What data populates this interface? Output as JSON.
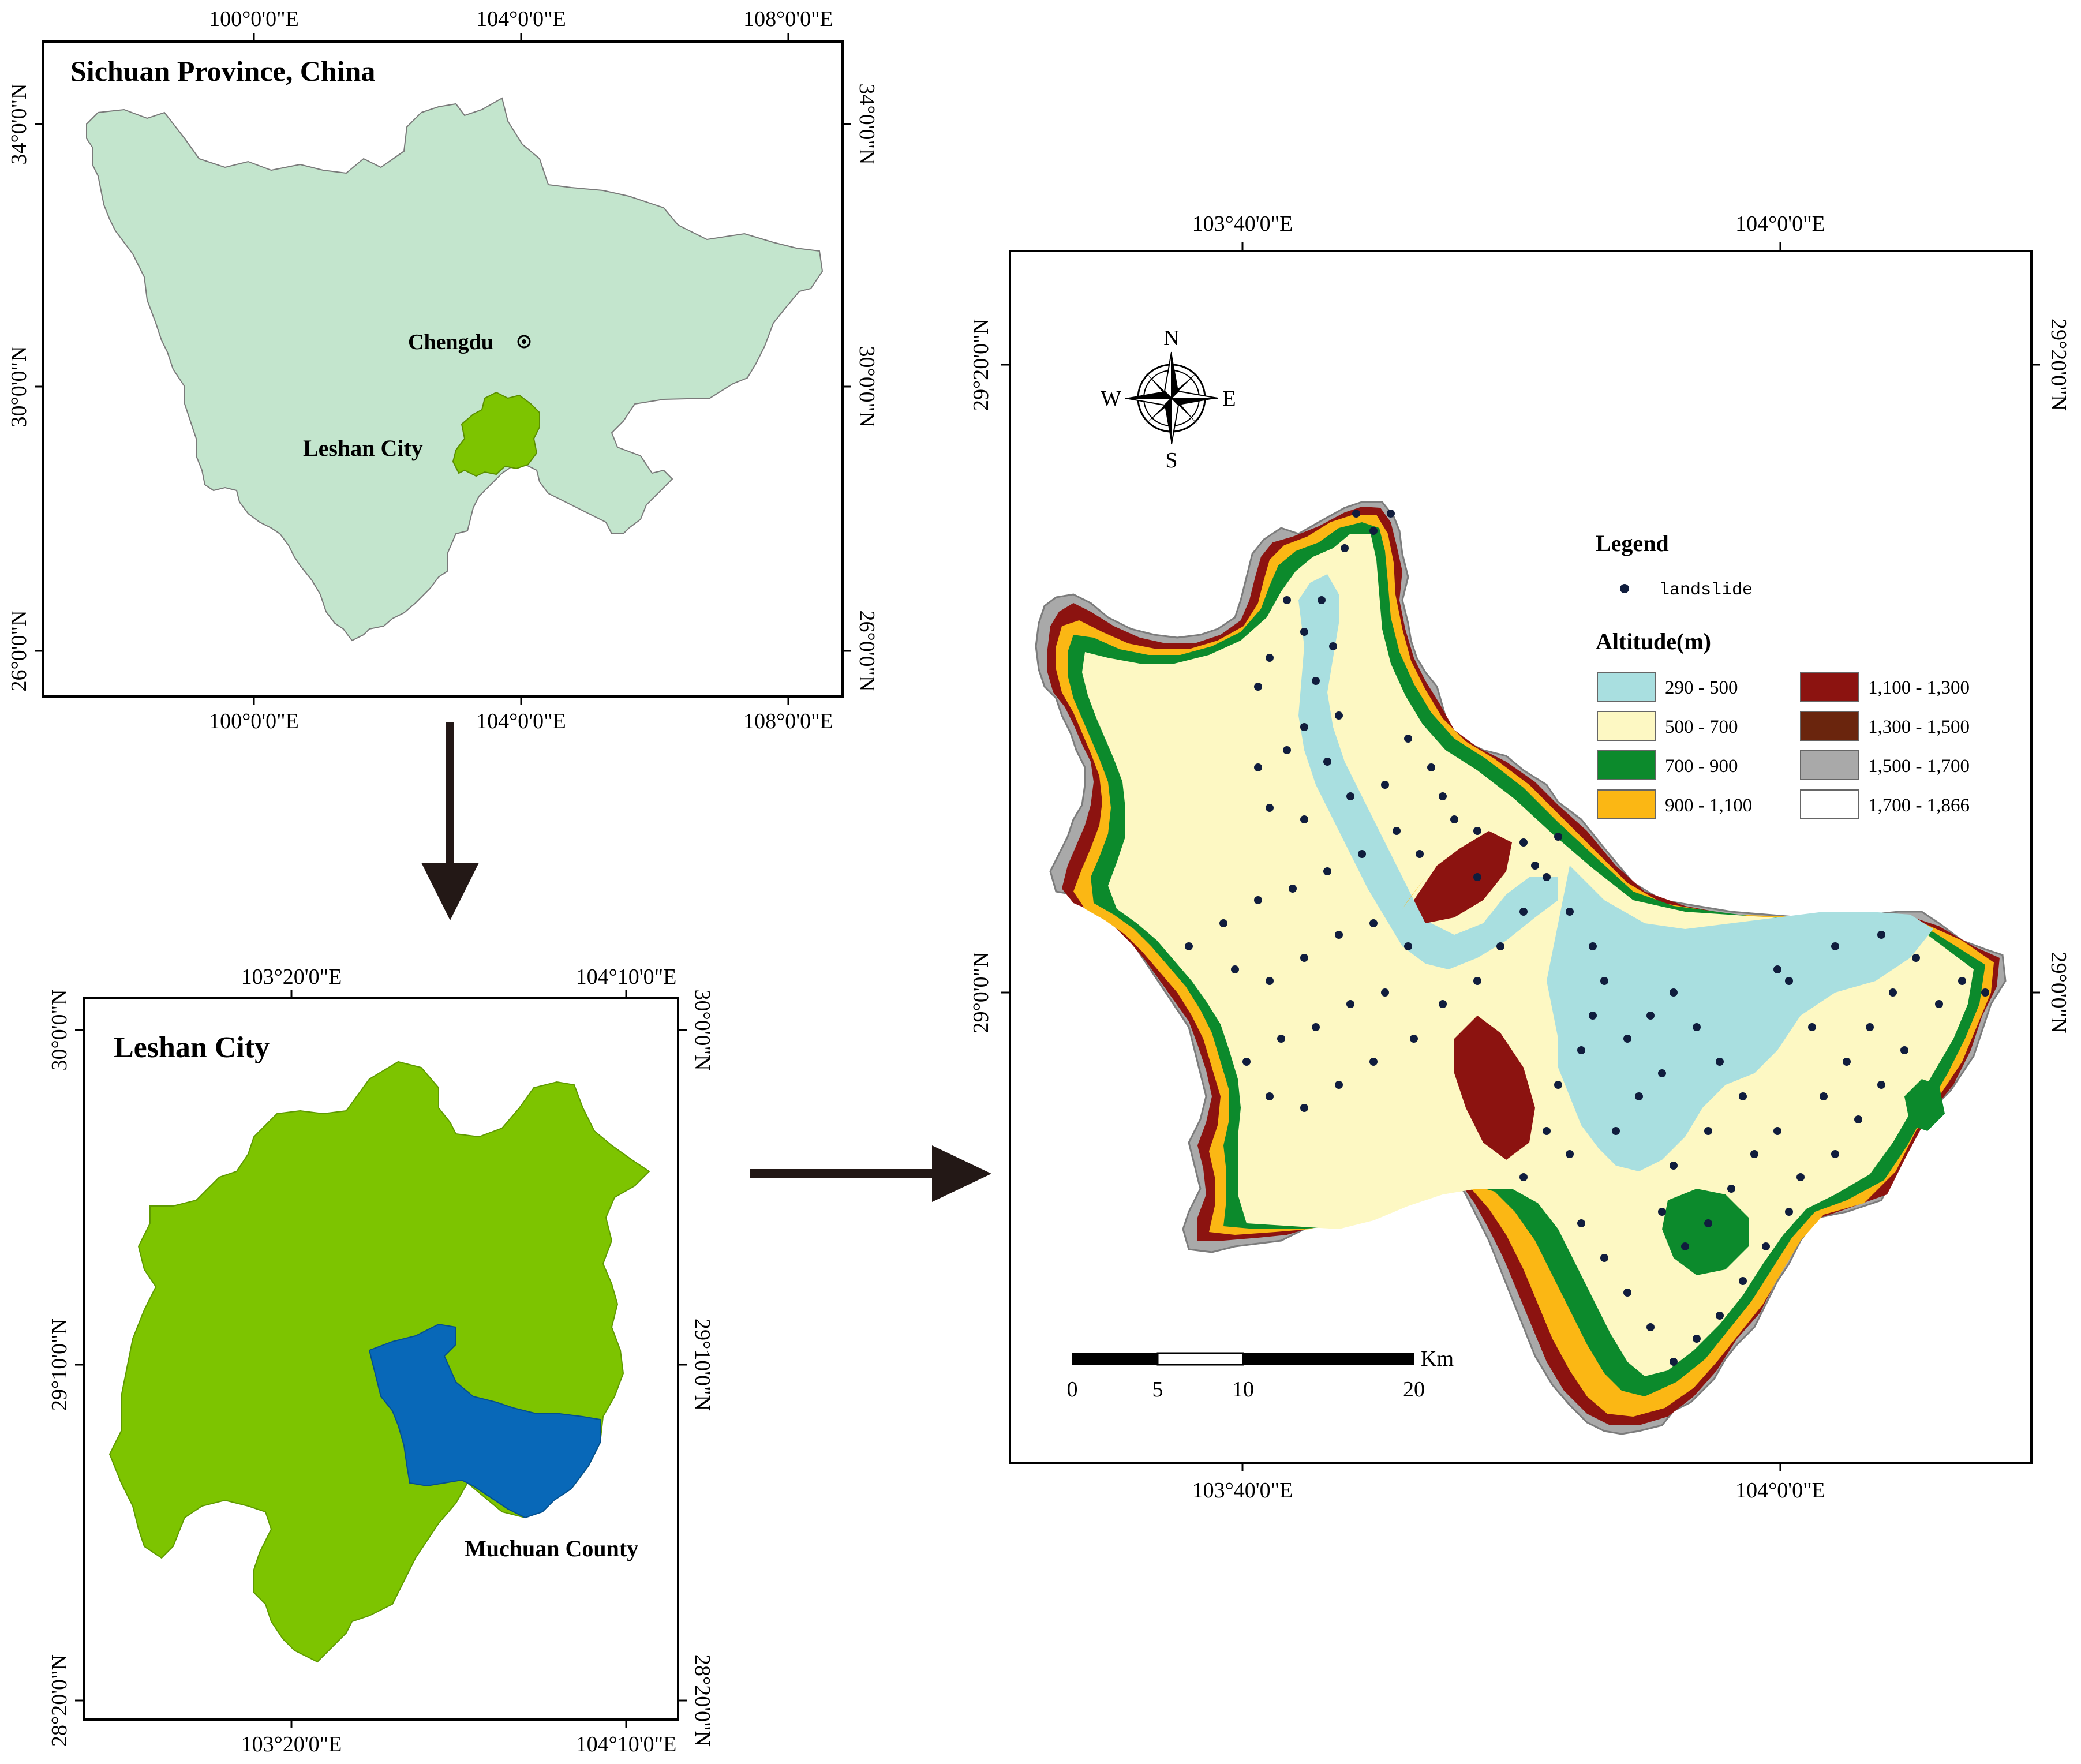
{
  "panel_sichuan": {
    "title": "Sichuan Province, China",
    "lon_ticks": [
      "100°0'0\"E",
      "104°0'0\"E",
      "108°0'0\"E"
    ],
    "lat_ticks": [
      "34°0'0\"N",
      "30°0'0\"N",
      "26°0'0\"N"
    ],
    "capital_label": "Chengdu",
    "city_label": "Leshan City",
    "colors": {
      "province": "#c3e5cd",
      "city": "#7dc400"
    }
  },
  "panel_leshan": {
    "title": "Leshan City",
    "lon_ticks": [
      "103°20'0\"E",
      "104°10'0\"E"
    ],
    "lat_ticks": [
      "30°0'0\"N",
      "29°10'0\"N",
      "28°20'0\"N"
    ],
    "county_label": "Muchuan County",
    "colors": {
      "city": "#7dc400",
      "county": "#0868b8"
    }
  },
  "panel_muchuan": {
    "lon_ticks": [
      "103°40'0\"E",
      "104°0'0\"E"
    ],
    "lat_ticks": [
      "29°20'0\"N",
      "29°0'0\"N"
    ],
    "compass": {
      "n": "N",
      "s": "S",
      "e": "E",
      "w": "W",
      "icon": "compass-rose-icon"
    },
    "legend": {
      "title": "Legend",
      "point_label": "landslide",
      "altitude_title": "Altitude(m)",
      "classes": [
        {
          "label": "290 - 500",
          "color": "#a9dfe0"
        },
        {
          "label": "500 - 700",
          "color": "#fdf8c3"
        },
        {
          "label": "700 - 900",
          "color": "#0c8a2c"
        },
        {
          "label": "900 - 1,100",
          "color": "#fbb714"
        },
        {
          "label": "1,100 - 1,300",
          "color": "#8c1310"
        },
        {
          "label": "1,300 - 1,500",
          "color": "#6a250d"
        },
        {
          "label": "1,500 - 1,700",
          "color": "#a9a9a9"
        },
        {
          "label": "1,700 - 1,866",
          "color": "#ffffff"
        }
      ]
    },
    "scale_bar": {
      "unit": "Km",
      "labels": [
        "0",
        "5",
        "10",
        "20"
      ]
    }
  }
}
